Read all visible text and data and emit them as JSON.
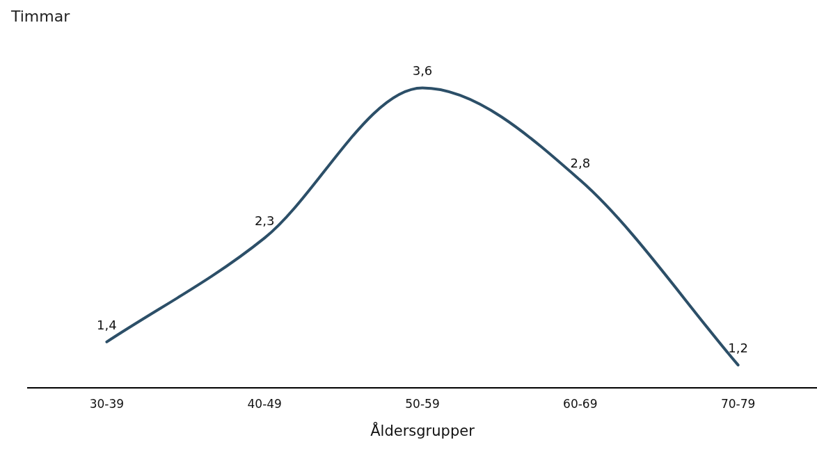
{
  "chart_data": {
    "type": "line",
    "ylabel": "Timmar",
    "xlabel": "Åldersgrupper",
    "categories": [
      "30-39",
      "40-49",
      "50-59",
      "60-69",
      "70-79"
    ],
    "series": [
      {
        "color": "#2c4f68",
        "values": [
          1.4,
          2.3,
          3.6,
          2.8,
          1.2
        ],
        "value_labels": [
          "1,4",
          "2,3",
          "3,6",
          "2,8",
          "1,2"
        ]
      }
    ],
    "grid": false,
    "legend": false,
    "tick_labels": "x",
    "marker": "none",
    "line_style": "solid"
  }
}
